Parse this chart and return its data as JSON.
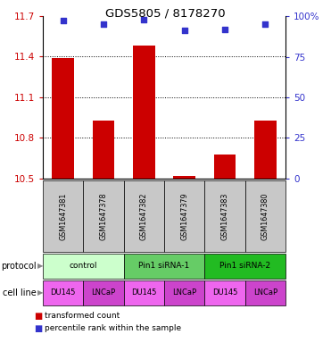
{
  "title": "GDS5805 / 8178270",
  "samples": [
    "GSM1647381",
    "GSM1647378",
    "GSM1647382",
    "GSM1647379",
    "GSM1647383",
    "GSM1647380"
  ],
  "red_values": [
    11.39,
    10.93,
    11.48,
    10.52,
    10.68,
    10.93
  ],
  "blue_values": [
    97,
    95,
    98,
    91,
    92,
    95
  ],
  "ylim_left": [
    10.5,
    11.7
  ],
  "ylim_right": [
    0,
    100
  ],
  "yticks_left": [
    10.5,
    10.8,
    11.1,
    11.4,
    11.7
  ],
  "yticks_right": [
    0,
    25,
    50,
    75,
    100
  ],
  "ytick_labels_left": [
    "10.5",
    "10.8",
    "11.1",
    "11.4",
    "11.7"
  ],
  "ytick_labels_right": [
    "0",
    "25",
    "50",
    "75",
    "100%"
  ],
  "protocols": [
    {
      "label": "control",
      "span": [
        0,
        2
      ],
      "color": "#ccffcc"
    },
    {
      "label": "Pin1 siRNA-1",
      "span": [
        2,
        4
      ],
      "color": "#66cc66"
    },
    {
      "label": "Pin1 siRNA-2",
      "span": [
        4,
        6
      ],
      "color": "#22bb22"
    }
  ],
  "cell_lines": [
    {
      "label": "DU145",
      "color": "#ee66ee"
    },
    {
      "label": "LNCaP",
      "color": "#cc44cc"
    },
    {
      "label": "DU145",
      "color": "#ee66ee"
    },
    {
      "label": "LNCaP",
      "color": "#cc44cc"
    },
    {
      "label": "DU145",
      "color": "#ee66ee"
    },
    {
      "label": "LNCaP",
      "color": "#cc44cc"
    }
  ],
  "bar_color": "#cc0000",
  "dot_color": "#3333cc",
  "bar_width": 0.55,
  "sample_bg_color": "#c8c8c8",
  "left_axis_color": "#cc0000",
  "right_axis_color": "#3333cc",
  "fig_width": 3.71,
  "fig_height": 3.93,
  "dpi": 100
}
